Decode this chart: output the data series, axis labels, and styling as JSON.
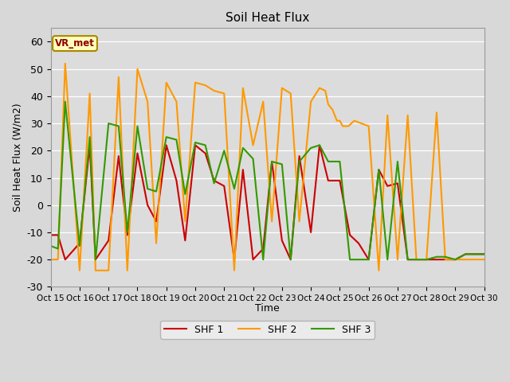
{
  "title": "Soil Heat Flux",
  "ylabel": "Soil Heat Flux (W/m2)",
  "xlabel": "Time",
  "ylim": [
    -30,
    65
  ],
  "yticks": [
    -30,
    -20,
    -10,
    0,
    10,
    20,
    30,
    40,
    50,
    60
  ],
  "annotation_label": "VR_met",
  "x_labels": [
    "Oct 15",
    "Oct 16",
    "Oct 17",
    "Oct 18",
    "Oct 19",
    "Oct 20",
    "Oct 21",
    "Oct 22",
    "Oct 23",
    "Oct 24",
    "Oct 25",
    "Oct 26",
    "Oct 27",
    "Oct 28",
    "Oct 29",
    "Oct 30"
  ],
  "colors": {
    "SHF1": "#cc0000",
    "SHF2": "#ff9900",
    "SHF3": "#339900"
  },
  "legend_labels": [
    "SHF 1",
    "SHF 2",
    "SHF 3"
  ],
  "s1x": [
    0.0,
    0.25,
    0.5,
    1.0,
    1.35,
    1.55,
    2.0,
    2.35,
    2.65,
    3.0,
    3.35,
    3.65,
    4.0,
    4.35,
    4.65,
    5.0,
    5.35,
    5.65,
    6.0,
    6.35,
    6.65,
    7.0,
    7.35,
    7.65,
    8.0,
    8.3,
    8.6,
    9.0,
    9.3,
    9.6,
    10.0,
    10.35,
    10.65,
    11.0,
    11.35,
    11.65,
    12.0,
    12.35,
    12.65,
    13.0,
    13.35,
    13.65,
    14.0,
    14.35,
    14.65,
    15.0
  ],
  "s1y": [
    -11,
    -11,
    -20,
    -14,
    22,
    -20,
    -13,
    18,
    -11,
    19,
    0,
    -6,
    22,
    9,
    -13,
    22,
    19,
    9,
    7,
    -20,
    13,
    -20,
    -16,
    16,
    -13,
    -20,
    18,
    -10,
    22,
    9,
    9,
    -11,
    -14,
    -20,
    13,
    7,
    8,
    -20,
    -20,
    -20,
    -20,
    -20,
    -20,
    -18,
    -18,
    -18
  ],
  "s2x": [
    0.0,
    0.25,
    0.5,
    1.0,
    1.35,
    1.55,
    2.0,
    2.35,
    2.65,
    3.0,
    3.35,
    3.65,
    4.0,
    4.35,
    4.65,
    5.0,
    5.35,
    5.65,
    6.0,
    6.35,
    6.65,
    7.0,
    7.35,
    7.65,
    8.0,
    8.3,
    8.6,
    9.0,
    9.3,
    9.5,
    9.6,
    9.75,
    9.9,
    10.0,
    10.1,
    10.2,
    10.3,
    10.5,
    11.0,
    11.35,
    11.65,
    12.0,
    12.35,
    12.65,
    13.0,
    13.35,
    13.65,
    14.0,
    14.35,
    14.65,
    15.0
  ],
  "s2y": [
    -20,
    -20,
    52,
    -24,
    41,
    -24,
    -24,
    47,
    -24,
    50,
    38,
    -14,
    45,
    38,
    -6,
    45,
    44,
    42,
    41,
    -24,
    43,
    22,
    38,
    -6,
    43,
    41,
    -6,
    38,
    43,
    42,
    37,
    35,
    31,
    31,
    29,
    29,
    29,
    31,
    29,
    -24,
    33,
    -20,
    33,
    -20,
    -20,
    34,
    -20,
    -20,
    -20,
    -20,
    -20
  ],
  "s3x": [
    0.0,
    0.25,
    0.5,
    1.0,
    1.35,
    1.55,
    2.0,
    2.35,
    2.65,
    3.0,
    3.35,
    3.65,
    4.0,
    4.35,
    4.65,
    5.0,
    5.35,
    5.65,
    6.0,
    6.35,
    6.65,
    7.0,
    7.35,
    7.65,
    8.0,
    8.3,
    8.6,
    9.0,
    9.3,
    9.6,
    10.0,
    10.35,
    10.65,
    11.0,
    11.35,
    11.65,
    12.0,
    12.35,
    12.65,
    13.0,
    13.35,
    13.65,
    14.0,
    14.35,
    14.65,
    15.0
  ],
  "s3y": [
    -15,
    -16,
    38,
    -15,
    25,
    -20,
    30,
    29,
    -10,
    29,
    6,
    5,
    25,
    24,
    4,
    23,
    22,
    8,
    20,
    6,
    21,
    17,
    -20,
    16,
    15,
    -20,
    16,
    21,
    22,
    16,
    16,
    -20,
    -20,
    -20,
    13,
    -20,
    16,
    -20,
    -20,
    -20,
    -19,
    -19,
    -20,
    -18,
    -18,
    -18
  ]
}
